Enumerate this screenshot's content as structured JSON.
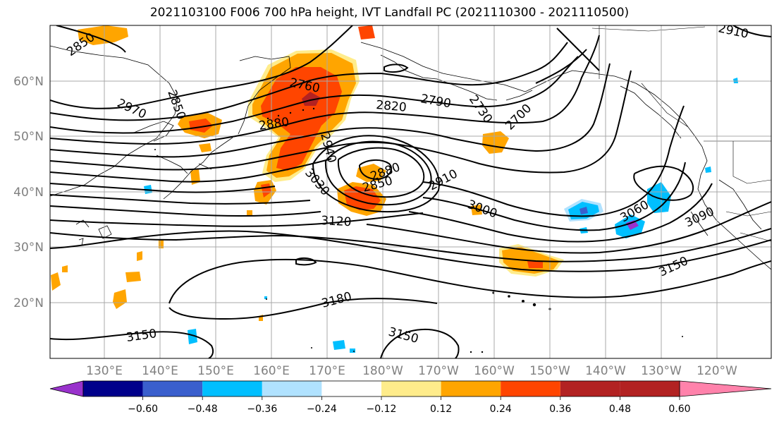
{
  "title": "2021103100 F006 700 hPa height, IVT Landfall PC (2021110300 - 2021110500)",
  "lat_labels": [
    "60°N",
    "50°N",
    "40°N",
    "30°N",
    "20°N"
  ],
  "lon_labels": [
    "130°E",
    "140°E",
    "150°E",
    "160°E",
    "170°E",
    "180°W",
    "170°W",
    "160°W",
    "150°W",
    "140°W",
    "130°W",
    "120°W"
  ],
  "contour_labels": [
    "2850",
    "2760",
    "2850",
    "2970",
    "2880",
    "2820",
    "2790",
    "2730",
    "2700",
    "2940",
    "3030",
    "2880",
    "2850",
    "2910",
    "3000",
    "3120",
    "3060",
    "3090",
    "3150",
    "3180",
    "3150",
    "3150",
    "2910"
  ],
  "colorbar": {
    "ticks": [
      "−0.60",
      "−0.48",
      "−0.36",
      "−0.24",
      "−0.12",
      "0.12",
      "0.24",
      "0.36",
      "0.48",
      "0.60"
    ],
    "colors": [
      "#9932cc",
      "#00008b",
      "#3a5fcd",
      "#00bfff",
      "#b0e2ff",
      "#ffffff",
      "#ffec8b",
      "#ffa500",
      "#ff4500",
      "#b22222",
      "#ff82ab"
    ]
  }
}
